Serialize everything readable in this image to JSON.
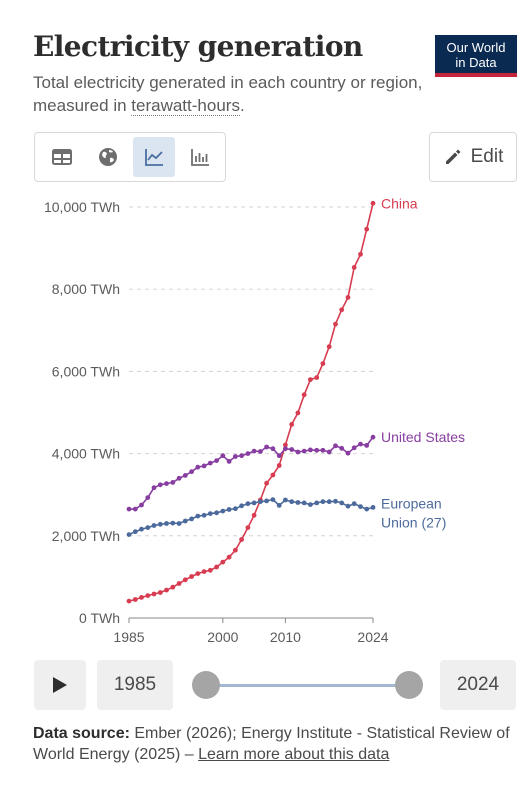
{
  "header": {
    "title": "Electricity generation",
    "subtitle_before": "Total electricity generated in each country or region, measured in ",
    "subtitle_term": "terawatt-hours",
    "subtitle_after": ".",
    "logo_line1": "Our World",
    "logo_line2": "in Data"
  },
  "toolbar": {
    "tabs": [
      "table-icon",
      "map-icon",
      "line-chart-icon",
      "bar-chart-icon"
    ],
    "active_tab": "line-chart-icon",
    "edit_label": "Edit"
  },
  "timeline": {
    "start_year": "1985",
    "end_year": "2024"
  },
  "footer": {
    "source_label": "Data source:",
    "source_text": " Ember (2026); Energy Institute - Statistical Review of World Energy (2025) – ",
    "learn_more": "Learn more about this data"
  },
  "chart_data": {
    "type": "line",
    "title": "",
    "xlabel": "",
    "ylabel": "",
    "xlim": [
      1985,
      2024
    ],
    "ylim": [
      0,
      10000
    ],
    "x_ticks": [
      1985,
      2000,
      2010,
      2024
    ],
    "y_ticks": [
      0,
      2000,
      4000,
      6000,
      8000,
      10000
    ],
    "y_tick_labels": [
      "0 TWh",
      "2,000 TWh",
      "4,000 TWh",
      "6,000 TWh",
      "8,000 TWh",
      "10,000 TWh"
    ],
    "grid": "horizontal dashed",
    "legend": "end-of-line labels",
    "x": [
      1985,
      1986,
      1987,
      1988,
      1989,
      1990,
      1991,
      1992,
      1993,
      1994,
      1995,
      1996,
      1997,
      1998,
      1999,
      2000,
      2001,
      2002,
      2003,
      2004,
      2005,
      2006,
      2007,
      2008,
      2009,
      2010,
      2011,
      2012,
      2013,
      2014,
      2015,
      2016,
      2017,
      2018,
      2019,
      2020,
      2021,
      2022,
      2023,
      2024
    ],
    "series": [
      {
        "name": "China",
        "color": "#d73c50",
        "values": [
          410,
          450,
          500,
          545,
          585,
          620,
          680,
          750,
          840,
          930,
          1010,
          1080,
          1130,
          1160,
          1240,
          1360,
          1480,
          1650,
          1910,
          2200,
          2500,
          2870,
          3280,
          3480,
          3710,
          4210,
          4710,
          4990,
          5430,
          5800,
          5850,
          6190,
          6600,
          7150,
          7500,
          7800,
          8530,
          8850,
          9460,
          10090
        ]
      },
      {
        "name": "United States",
        "color": "#883ea1",
        "values": [
          2650,
          2650,
          2750,
          2930,
          3170,
          3240,
          3270,
          3300,
          3400,
          3470,
          3560,
          3670,
          3700,
          3770,
          3830,
          3950,
          3810,
          3930,
          3950,
          4000,
          4060,
          4050,
          4160,
          4120,
          3950,
          4120,
          4100,
          4040,
          4060,
          4090,
          4080,
          4080,
          4040,
          4190,
          4130,
          4010,
          4140,
          4230,
          4200,
          4400
        ]
      },
      {
        "name": "European Union (27)",
        "color": "#4c6a9c",
        "values": [
          2030,
          2100,
          2160,
          2200,
          2250,
          2280,
          2300,
          2310,
          2300,
          2360,
          2410,
          2480,
          2500,
          2540,
          2560,
          2600,
          2640,
          2660,
          2730,
          2780,
          2800,
          2830,
          2850,
          2880,
          2740,
          2870,
          2830,
          2810,
          2800,
          2760,
          2800,
          2830,
          2830,
          2840,
          2800,
          2720,
          2780,
          2710,
          2650,
          2690
        ]
      }
    ]
  }
}
